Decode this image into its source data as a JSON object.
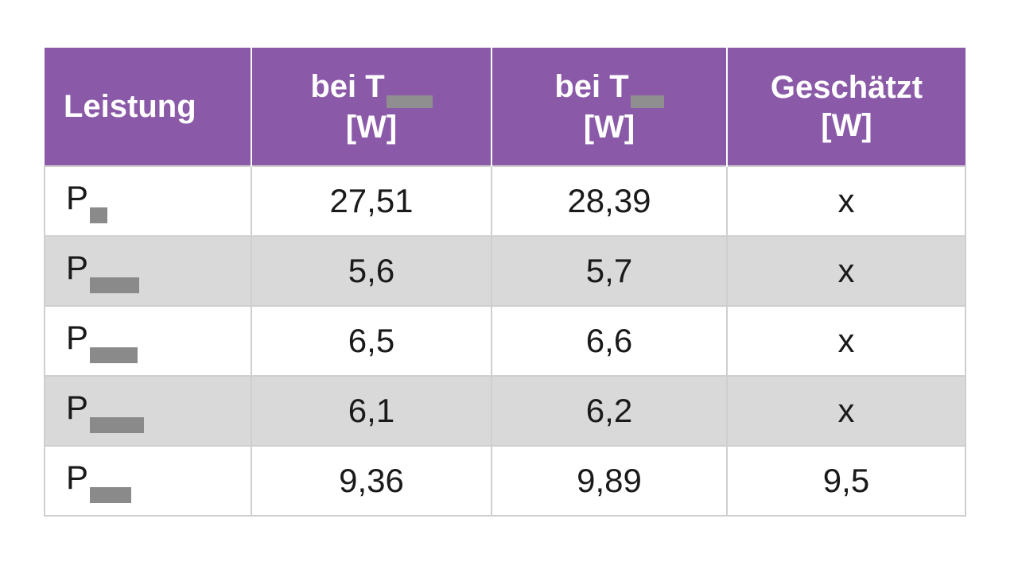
{
  "table": {
    "headers": [
      {
        "lines": [
          "Leistung"
        ]
      },
      {
        "lines": [
          "bei T",
          "[W]"
        ]
      },
      {
        "lines": [
          "bei T",
          "[W]"
        ]
      },
      {
        "lines": [
          "Geschätzt",
          "[W]"
        ]
      }
    ],
    "rows": [
      {
        "symbol": "P",
        "t1": "27,51",
        "t2": "28,39",
        "est": "x"
      },
      {
        "symbol": "P",
        "t1": "5,6",
        "t2": "5,7",
        "est": "x"
      },
      {
        "symbol": "P",
        "t1": "6,5",
        "t2": "6,6",
        "est": "x"
      },
      {
        "symbol": "P",
        "t1": "6,1",
        "t2": "6,2",
        "est": "x"
      },
      {
        "symbol": "P",
        "t1": "9,36",
        "t2": "9,89",
        "est": "9,5"
      }
    ]
  },
  "colors": {
    "header_bg": "#8a5aa8",
    "header_text": "#ffffff",
    "shaded_row": "#d9d9d9",
    "redaction": "#8f8f8f"
  }
}
